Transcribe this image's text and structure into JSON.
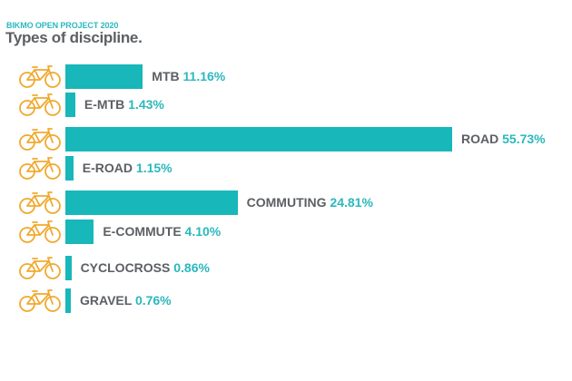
{
  "header": {
    "subtitle": "BIKMO OPEN PROJECT 2020",
    "title": "Types of discipline."
  },
  "colors": {
    "bar": "#18b7b9",
    "value": "#2bb8bd",
    "label": "#5c5f63",
    "icon": "#f0a92e"
  },
  "rows": [
    {
      "name": "MTB",
      "value": "11.16%",
      "pct": 11.16,
      "icon": "mountain-bike-icon"
    },
    {
      "name": "E-MTB",
      "value": "1.43%",
      "pct": 1.43,
      "icon": "e-mountain-bike-icon"
    },
    {
      "name": "ROAD",
      "value": "55.73%",
      "pct": 55.73,
      "icon": "road-bike-icon"
    },
    {
      "name": "E-ROAD",
      "value": "1.15%",
      "pct": 1.15,
      "icon": "e-road-bike-icon"
    },
    {
      "name": "COMMUTING",
      "value": "24.81%",
      "pct": 24.81,
      "icon": "commuter-bike-icon"
    },
    {
      "name": "E-COMMUTE",
      "value": "4.10%",
      "pct": 4.1,
      "icon": "e-commuter-bike-icon"
    },
    {
      "name": "CYCLOCROSS",
      "value": "0.86%",
      "pct": 0.86,
      "icon": "cyclocross-bike-icon"
    },
    {
      "name": "GRAVEL",
      "value": "0.76%",
      "pct": 0.76,
      "icon": "gravel-bike-icon"
    }
  ],
  "chart_data": {
    "type": "bar",
    "orientation": "horizontal",
    "title": "Types of discipline.",
    "subtitle": "BIKMO OPEN PROJECT 2020",
    "categories": [
      "MTB",
      "E-MTB",
      "ROAD",
      "E-ROAD",
      "COMMUTING",
      "E-COMMUTE",
      "CYCLOCROSS",
      "GRAVEL"
    ],
    "values": [
      11.16,
      1.43,
      55.73,
      1.15,
      24.81,
      4.1,
      0.86,
      0.76
    ],
    "xlabel": "",
    "ylabel": "",
    "unit": "%",
    "grid": false,
    "legend": "none"
  }
}
